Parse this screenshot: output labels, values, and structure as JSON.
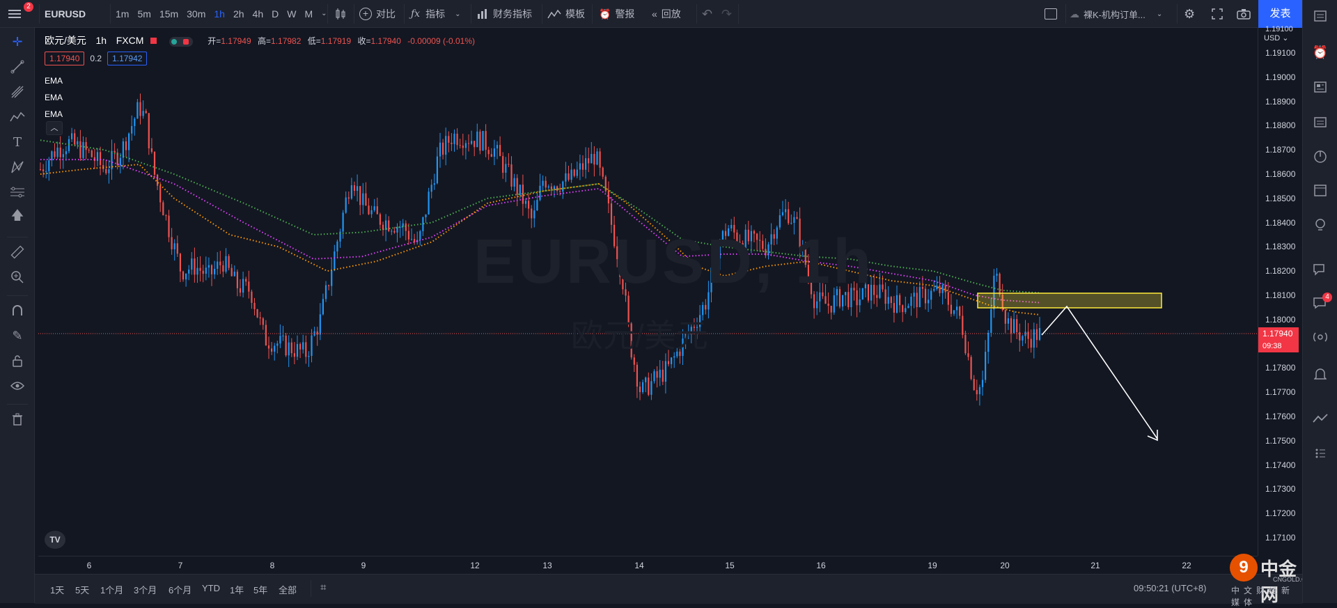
{
  "topbar": {
    "notification_count": "2",
    "symbol": "EURUSD",
    "timeframes": [
      "1m",
      "5m",
      "15m",
      "30m",
      "1h",
      "2h",
      "4h",
      "D",
      "W",
      "M"
    ],
    "active_timeframe": "1h",
    "compare_label": "对比",
    "indicators_label": "指标",
    "financials_label": "财务指标",
    "templates_label": "模板",
    "alert_label": "警报",
    "replay_label": "回放",
    "layout_name": "裸K-机构订单...",
    "publish_label": "发表"
  },
  "legend": {
    "title": "欧元/美元",
    "interval": "1h",
    "source": "FXCM",
    "open_label": "开=",
    "open": "1.17949",
    "high_label": "高=",
    "high": "1.17982",
    "low_label": "低=",
    "low": "1.17919",
    "close_label": "收=",
    "close": "1.17940",
    "change": "-0.00009 (-0.01%)",
    "bid": "1.17940",
    "spread": "0.2",
    "ask": "1.17942",
    "indicators": [
      "EMA",
      "EMA",
      "EMA"
    ]
  },
  "watermark": {
    "symbol_tf": "EURUSD, 1h",
    "name": "欧元/美元"
  },
  "price_axis": {
    "currency": "USD",
    "top_label": "1.19100",
    "labels": [
      "1.19100",
      "1.19000",
      "1.18900",
      "1.18800",
      "1.18700",
      "1.18600",
      "1.18500",
      "1.18400",
      "1.18300",
      "1.18200",
      "1.18100",
      "1.18000",
      "1.17900",
      "1.17800",
      "1.17700",
      "1.17600",
      "1.17500",
      "1.17400",
      "1.17300",
      "1.17200",
      "1.17100"
    ],
    "current_price": "1.17940",
    "countdown": "09:38"
  },
  "time_axis": {
    "labels": [
      "6",
      "7",
      "8",
      "9",
      "12",
      "13",
      "14",
      "15",
      "16",
      "19",
      "20",
      "21",
      "22"
    ]
  },
  "bottombar": {
    "ranges": [
      "1天",
      "5天",
      "1个月",
      "3个月",
      "6个月",
      "YTD",
      "1年",
      "5年",
      "全部"
    ],
    "clock": "09:50:21 (UTC+8)",
    "brand": "中金网",
    "brand_url": "CNGOLD.COM.CN",
    "brand_sub": "中文财经新媒体"
  },
  "right_badges": {
    "chat_count": "4"
  },
  "colors": {
    "bg": "#131722",
    "up": "#2196f3",
    "down": "#ef5350",
    "ema_fast": "#ff9800",
    "ema_mid": "#e040fb",
    "ema_slow": "#4caf50",
    "zone": "#ffeb3b"
  }
}
